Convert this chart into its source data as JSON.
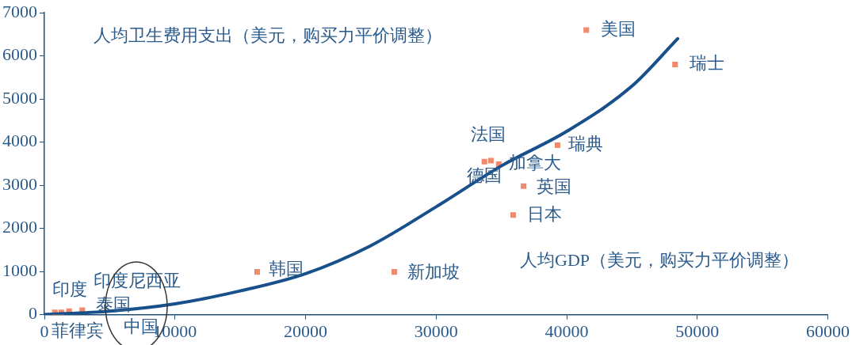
{
  "chart_data": {
    "type": "scatter",
    "xlabel": "人均GDP（美元，购买力平价调整）",
    "ylabel": "人均卫生费用支出（美元，购买力平价调整）",
    "xlim": [
      0,
      60000
    ],
    "xticks": [
      0,
      10000,
      20000,
      30000,
      40000,
      50000,
      60000
    ],
    "ylim": [
      0,
      7000
    ],
    "yticks": [
      0,
      1000,
      2000,
      3000,
      4000,
      5000,
      6000,
      7000
    ],
    "grid": false,
    "legend": false,
    "series": [
      {
        "color": "#f08a6c",
        "marker": "square",
        "x": [
          41500,
          48300,
          39300,
          33700,
          34200,
          34800,
          36700,
          35900,
          26800,
          16300,
          800,
          1300,
          1900,
          2900
        ],
        "values": [
          6600,
          5800,
          3930,
          3550,
          3570,
          3490,
          2980,
          2310,
          990,
          990,
          50,
          50,
          80,
          100
        ]
      },
      {
        "type": "line",
        "color": "#17508a",
        "x": [
          0,
          5000,
          10000,
          15000,
          20000,
          25000,
          30000,
          35000,
          40000,
          45000,
          48500
        ],
        "values": [
          0,
          80,
          250,
          550,
          950,
          1600,
          2500,
          3450,
          4250,
          5300,
          6400
        ]
      }
    ],
    "annotations": [
      {
        "text": "美国",
        "x": 41500,
        "y": 6600
      },
      {
        "text": "瑞士",
        "x": 48300,
        "y": 5800
      },
      {
        "text": "瑞典",
        "x": 39300,
        "y": 3930
      },
      {
        "text": "法国",
        "x": 33700,
        "y": 3550
      },
      {
        "text": "德国",
        "x": 34200,
        "y": 3570
      },
      {
        "text": "加拿大",
        "x": 34800,
        "y": 3490
      },
      {
        "text": "英国",
        "x": 36700,
        "y": 2980
      },
      {
        "text": "日本",
        "x": 35900,
        "y": 2310
      },
      {
        "text": "新加坡",
        "x": 26800,
        "y": 990
      },
      {
        "text": "韩国",
        "x": 16300,
        "y": 990
      },
      {
        "text": "印度",
        "x": 800,
        "y": 50
      },
      {
        "text": "菲律宾",
        "x": 1300,
        "y": 50
      },
      {
        "text": "印度尼西亚",
        "x": 1900,
        "y": 80
      },
      {
        "text": "泰国",
        "x": 2900,
        "y": 100
      },
      "中国"
    ]
  }
}
